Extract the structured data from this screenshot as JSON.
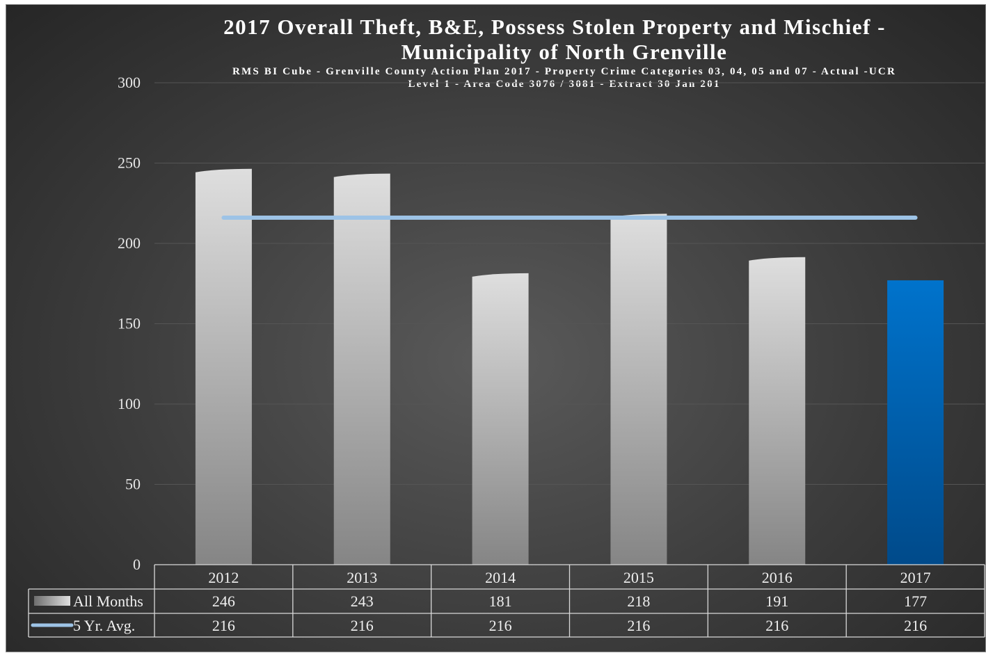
{
  "chart_data": {
    "type": "bar",
    "title_line1": "2017 Overall Theft, B&E, Possess Stolen Property and Mischief -",
    "title_line2": "Municipality of North Grenville",
    "subtitle_line1": "RMS BI Cube - Grenville County Action Plan 2017 - Property Crime Categories 03, 04, 05 and 07 - Actual -UCR",
    "subtitle_line2": "Level 1 - Area Code 3076 / 3081 - Extract 30 Jan 201",
    "categories": [
      "2012",
      "2013",
      "2014",
      "2015",
      "2016",
      "2017"
    ],
    "series": [
      {
        "name": "All Months",
        "type": "bar",
        "values": [
          246,
          243,
          181,
          218,
          191,
          177
        ],
        "highlight_index": 5
      },
      {
        "name": "5 Yr. Avg.",
        "type": "line",
        "values": [
          216,
          216,
          216,
          216,
          216,
          216
        ]
      }
    ],
    "ylim": [
      0,
      300
    ],
    "yticks": [
      0,
      50,
      100,
      150,
      200,
      250,
      300
    ],
    "grid": true,
    "legend": "data-table-below-axis"
  },
  "colors": {
    "bar": "#d6d6d6",
    "highlight_bar": "#0070c8",
    "avg_line": "#9dc3e6",
    "grid": "#555555"
  }
}
